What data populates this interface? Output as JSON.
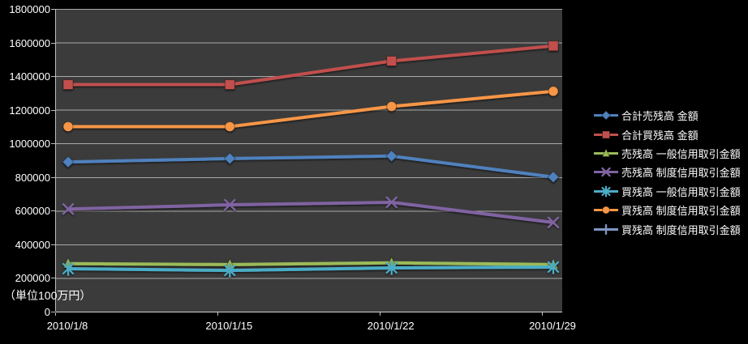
{
  "chart": {
    "background": "#000000",
    "plot_background": "#3B3B3B",
    "gridline_color": "#BDBDBD",
    "axis_color": "#D4D4D4",
    "text_color": "#FFFFFF"
  },
  "chart_data": {
    "type": "line",
    "title": "",
    "unit_label": "（単位100万円）",
    "categories": [
      "2010/1/8",
      "2010/1/15",
      "2010/1/22",
      "2010/1/29"
    ],
    "xlabel": "",
    "ylabel": "",
    "ylim": [
      0,
      1800000
    ],
    "ytick_step": 200000,
    "ytick_labels": [
      "0",
      "200000",
      "400000",
      "600000",
      "800000",
      "1000000",
      "1200000",
      "1400000",
      "1600000",
      "1800000"
    ],
    "grid": true,
    "legend_position": "right",
    "series": [
      {
        "name": "合計売残高 金額",
        "color": "#4F81BD",
        "marker": "diamond",
        "values": [
          890000,
          910000,
          925000,
          800000
        ]
      },
      {
        "name": "合計買残高 金額",
        "color": "#C0504D",
        "marker": "square",
        "values": [
          1350000,
          1350000,
          1490000,
          1580000
        ]
      },
      {
        "name": "売残高 一般信用取引金額",
        "color": "#9BBB59",
        "marker": "triangle",
        "values": [
          285000,
          280000,
          290000,
          280000
        ]
      },
      {
        "name": "売残高 制度信用取引金額",
        "color": "#8064A2",
        "marker": "x",
        "values": [
          610000,
          635000,
          650000,
          530000
        ]
      },
      {
        "name": "買残高 一般信用取引金額",
        "color": "#4BACC6",
        "marker": "star",
        "values": [
          255000,
          245000,
          260000,
          265000
        ]
      },
      {
        "name": "買残高 制度信用取引金額",
        "color": "#F79646",
        "marker": "circle",
        "values": [
          1100000,
          1100000,
          1220000,
          1310000
        ]
      },
      {
        "name": "買残高 制度信用取引金額",
        "color": "#7E96C4",
        "marker": "plus",
        "values": [
          null,
          null,
          null,
          null
        ]
      }
    ]
  }
}
